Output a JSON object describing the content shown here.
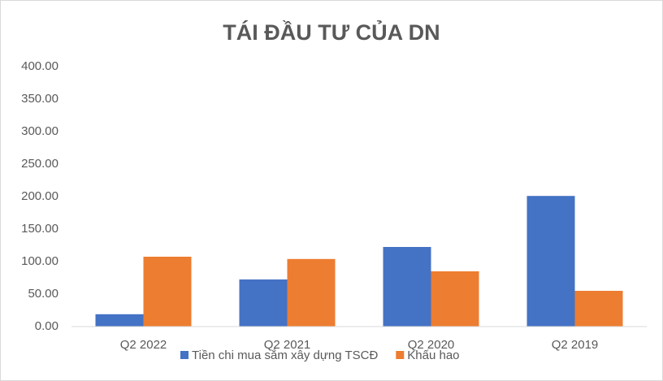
{
  "chart_data": {
    "type": "bar",
    "title": "TÁI ĐẦU TƯ CỦA DN",
    "categories": [
      "Q2 2022",
      "Q2 2021",
      "Q2 2020",
      "Q2 2019"
    ],
    "series": [
      {
        "name": "Tiền chi mua sắm xây dựng TSCĐ",
        "color": "#4472c4",
        "values": [
          19,
          72.5,
          122.5,
          201
        ]
      },
      {
        "name": "Khấu hao",
        "color": "#ed7d31",
        "values": [
          107.5,
          104,
          85,
          55
        ]
      }
    ],
    "ylim": [
      0,
      400
    ],
    "yticks": [
      {
        "value": 0,
        "label": "0.00"
      },
      {
        "value": 50,
        "label": "50.00"
      },
      {
        "value": 100,
        "label": "100.00"
      },
      {
        "value": 150,
        "label": "150.00"
      },
      {
        "value": 200,
        "label": "200.00"
      },
      {
        "value": 250,
        "label": "250.00"
      },
      {
        "value": 300,
        "label": "300.00"
      },
      {
        "value": 350,
        "label": "350.00"
      },
      {
        "value": 400,
        "label": "400.00"
      }
    ],
    "grid": false,
    "legend": "bottom"
  }
}
